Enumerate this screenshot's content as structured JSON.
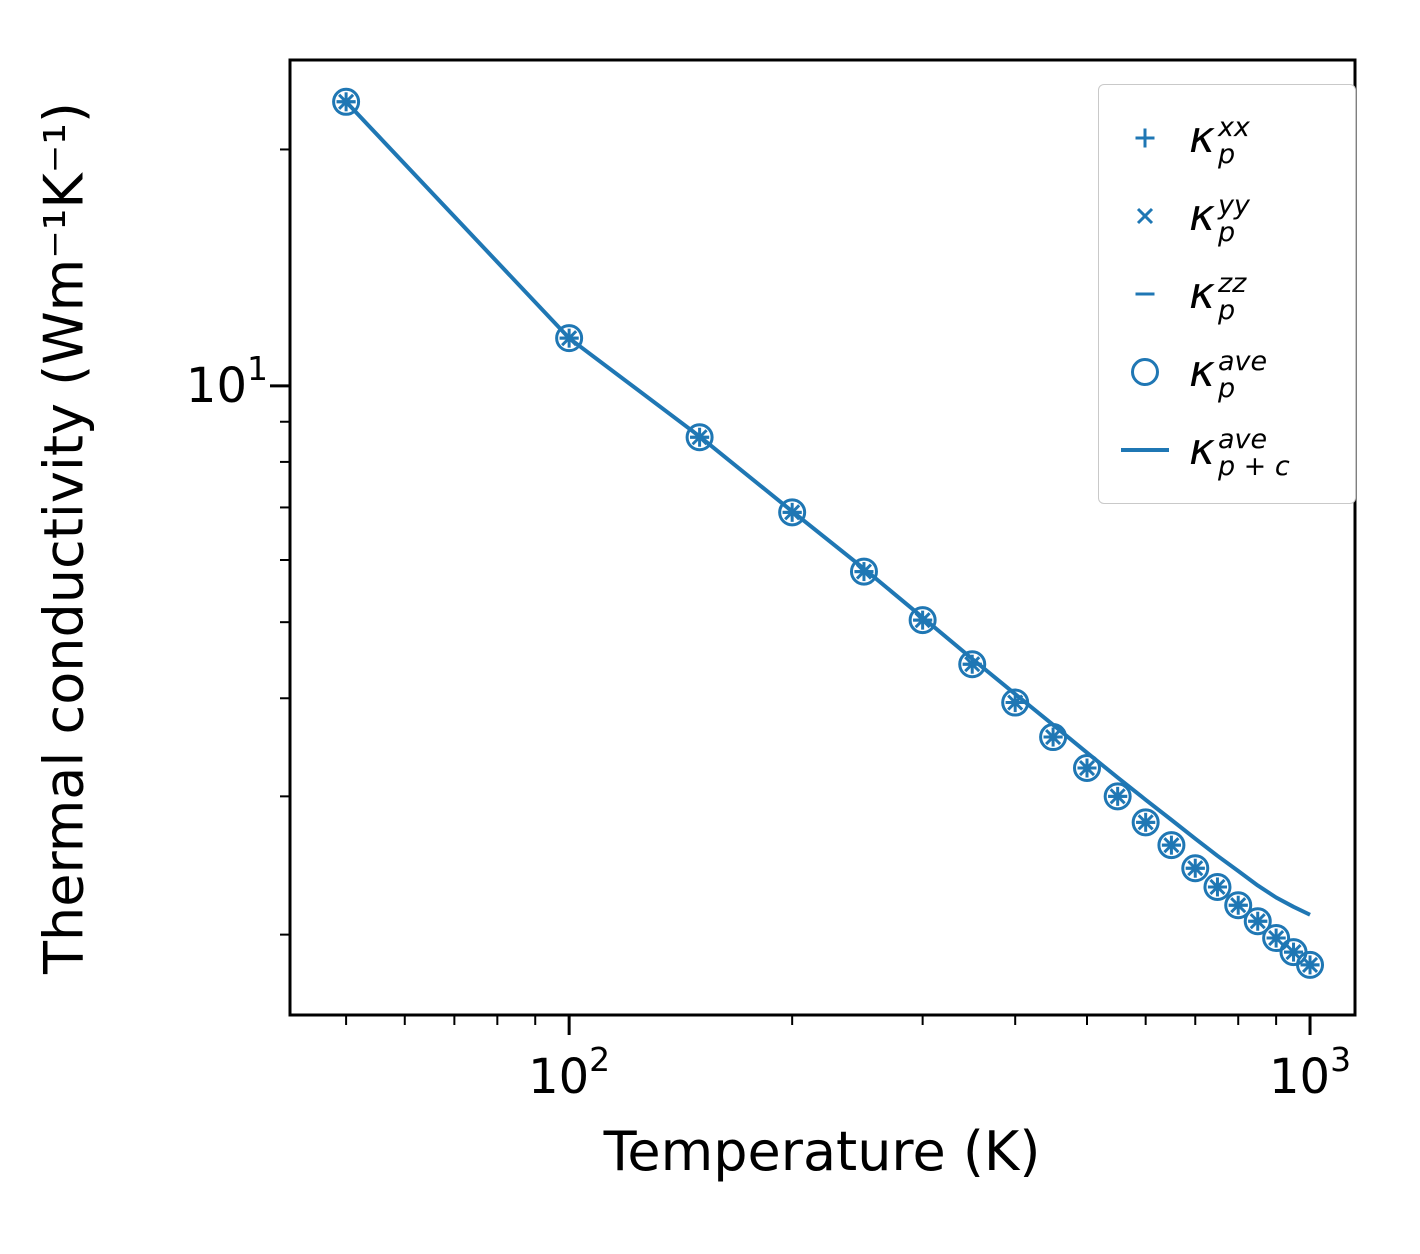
{
  "chart_data": {
    "type": "line+scatter",
    "title": "",
    "xlabel": "Temperature (K)",
    "ylabel": "Thermal conductivity (Wm⁻¹K⁻¹)",
    "x_scale": "log",
    "y_scale": "log",
    "xlim": [
      42,
      1150
    ],
    "ylim": [
      1.58,
      26
    ],
    "grid": false,
    "legend_position": "upper right",
    "color": "#1f77b4",
    "temperatures_K": [
      50,
      100,
      150,
      200,
      250,
      300,
      350,
      400,
      450,
      500,
      550,
      600,
      650,
      700,
      750,
      800,
      850,
      900,
      950,
      1000
    ],
    "series": [
      {
        "id": "kappa-p-xx",
        "label": "κ_p^xx",
        "kind": "scatter",
        "marker": "plus",
        "values": [
          23.0,
          11.5,
          8.6,
          6.9,
          5.8,
          5.03,
          4.42,
          3.95,
          3.57,
          3.26,
          3.0,
          2.78,
          2.6,
          2.43,
          2.3,
          2.18,
          2.08,
          1.98,
          1.9,
          1.83
        ]
      },
      {
        "id": "kappa-p-yy",
        "label": "κ_p^yy",
        "kind": "scatter",
        "marker": "x",
        "values": [
          23.0,
          11.5,
          8.6,
          6.9,
          5.8,
          5.03,
          4.42,
          3.95,
          3.57,
          3.26,
          3.0,
          2.78,
          2.6,
          2.43,
          2.3,
          2.18,
          2.08,
          1.98,
          1.9,
          1.83
        ]
      },
      {
        "id": "kappa-p-zz",
        "label": "κ_p^zz",
        "kind": "scatter",
        "marker": "dash",
        "values": [
          23.0,
          11.5,
          8.6,
          6.9,
          5.8,
          5.03,
          4.42,
          3.95,
          3.57,
          3.26,
          3.0,
          2.78,
          2.6,
          2.43,
          2.3,
          2.18,
          2.08,
          1.98,
          1.9,
          1.83
        ]
      },
      {
        "id": "kappa-p-ave",
        "label": "κ_p^ave",
        "kind": "scatter",
        "marker": "circle",
        "values": [
          23.0,
          11.5,
          8.6,
          6.9,
          5.8,
          5.03,
          4.42,
          3.95,
          3.57,
          3.26,
          3.0,
          2.78,
          2.6,
          2.43,
          2.3,
          2.18,
          2.08,
          1.98,
          1.9,
          1.83
        ]
      },
      {
        "id": "kappa-p-plus-c-ave",
        "label": "κ_{p+c}^ave",
        "kind": "line",
        "marker": "line",
        "values": [
          23.0,
          11.5,
          8.62,
          6.92,
          5.85,
          5.07,
          4.49,
          4.05,
          3.7,
          3.41,
          3.17,
          2.97,
          2.8,
          2.65,
          2.52,
          2.41,
          2.31,
          2.23,
          2.17,
          2.12
        ]
      }
    ],
    "legend": {
      "items": [
        {
          "id": "kappa-p-xx",
          "marker": "plus",
          "base": "κ",
          "sup": "xx",
          "sub": "p"
        },
        {
          "id": "kappa-p-yy",
          "marker": "x",
          "base": "κ",
          "sup": "yy",
          "sub": "p"
        },
        {
          "id": "kappa-p-zz",
          "marker": "dash",
          "base": "κ",
          "sup": "zz",
          "sub": "p"
        },
        {
          "id": "kappa-p-ave",
          "marker": "circle",
          "base": "κ",
          "sup": "ave",
          "sub": "p"
        },
        {
          "id": "kappa-p-plus-c-ave",
          "marker": "line",
          "base": "κ",
          "sup": "ave",
          "sub": "p + c"
        }
      ]
    },
    "x_ticks": {
      "major": [
        {
          "value": 100,
          "base": "10",
          "exp": "2"
        },
        {
          "value": 1000,
          "base": "10",
          "exp": "3"
        }
      ],
      "minor": [
        50,
        60,
        70,
        80,
        90,
        200,
        300,
        400,
        500,
        600,
        700,
        800,
        900
      ]
    },
    "y_ticks": {
      "major": [
        {
          "value": 10,
          "base": "10",
          "exp": "1"
        }
      ],
      "minor": [
        2,
        3,
        4,
        5,
        6,
        7,
        8,
        9,
        20
      ]
    }
  }
}
